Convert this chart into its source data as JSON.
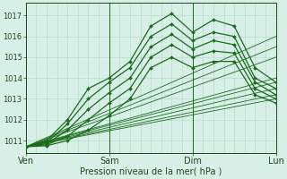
{
  "title": "",
  "xlabel": "Pression niveau de la mer( hPa )",
  "ylabel": "",
  "background_color": "#d8efe8",
  "plot_bg_color": "#d8efe8",
  "grid_color": "#b0d8c8",
  "line_color": "#1a6b1a",
  "ylim": [
    1010.4,
    1017.6
  ],
  "xlim": [
    0,
    72
  ],
  "yticks": [
    1011,
    1012,
    1013,
    1014,
    1015,
    1016,
    1017
  ],
  "xtick_positions": [
    0,
    24,
    48,
    72
  ],
  "xtick_labels": [
    "Ven",
    "Sam",
    "Dim",
    "Lun"
  ],
  "series": [
    {
      "x": [
        0,
        6,
        12,
        18,
        24,
        30,
        36,
        42,
        48,
        54,
        60,
        66,
        72
      ],
      "y": [
        1010.7,
        1011.0,
        1012.0,
        1013.5,
        1014.0,
        1014.8,
        1016.5,
        1017.1,
        1016.2,
        1016.8,
        1016.5,
        1014.5,
        1013.8
      ],
      "marker": true
    },
    {
      "x": [
        0,
        6,
        12,
        18,
        24,
        30,
        36,
        42,
        48,
        54,
        60,
        66,
        72
      ],
      "y": [
        1010.7,
        1010.9,
        1011.8,
        1013.0,
        1013.8,
        1014.5,
        1016.0,
        1016.6,
        1015.8,
        1016.2,
        1016.0,
        1014.0,
        1013.5
      ],
      "marker": true
    },
    {
      "x": [
        0,
        6,
        12,
        18,
        24,
        30,
        36,
        42,
        48,
        54,
        60,
        66,
        72
      ],
      "y": [
        1010.7,
        1010.85,
        1011.5,
        1012.5,
        1013.3,
        1014.0,
        1015.5,
        1016.1,
        1015.4,
        1015.8,
        1015.6,
        1013.8,
        1013.2
      ],
      "marker": true
    },
    {
      "x": [
        0,
        6,
        12,
        18,
        24,
        30,
        36,
        42,
        48,
        54,
        60,
        66,
        72
      ],
      "y": [
        1010.7,
        1010.8,
        1011.2,
        1012.0,
        1012.8,
        1013.5,
        1015.0,
        1015.6,
        1015.0,
        1015.3,
        1015.2,
        1013.5,
        1013.0
      ],
      "marker": true
    },
    {
      "x": [
        0,
        6,
        12,
        18,
        24,
        30,
        36,
        42,
        48,
        54,
        60,
        66,
        72
      ],
      "y": [
        1010.7,
        1010.75,
        1011.0,
        1011.5,
        1012.2,
        1013.0,
        1014.5,
        1015.0,
        1014.5,
        1014.8,
        1014.8,
        1013.2,
        1012.8
      ],
      "marker": true
    },
    {
      "x": [
        0,
        72
      ],
      "y": [
        1010.7,
        1013.8
      ],
      "marker": false
    },
    {
      "x": [
        0,
        72
      ],
      "y": [
        1010.7,
        1013.5
      ],
      "marker": false
    },
    {
      "x": [
        0,
        72
      ],
      "y": [
        1010.7,
        1013.2
      ],
      "marker": false
    },
    {
      "x": [
        0,
        72
      ],
      "y": [
        1010.7,
        1013.0
      ],
      "marker": false
    },
    {
      "x": [
        0,
        72
      ],
      "y": [
        1010.7,
        1014.0
      ],
      "marker": false
    },
    {
      "x": [
        0,
        72
      ],
      "y": [
        1010.7,
        1015.0
      ],
      "marker": false
    },
    {
      "x": [
        0,
        72
      ],
      "y": [
        1010.7,
        1015.5
      ],
      "marker": false
    },
    {
      "x": [
        0,
        72
      ],
      "y": [
        1010.7,
        1016.0
      ],
      "marker": false
    }
  ],
  "marker_char": "D",
  "marker_size": 2.0,
  "linewidth": 0.9,
  "thin_linewidth": 0.6,
  "grid_minor_step": 3,
  "grid_major_step": 24
}
